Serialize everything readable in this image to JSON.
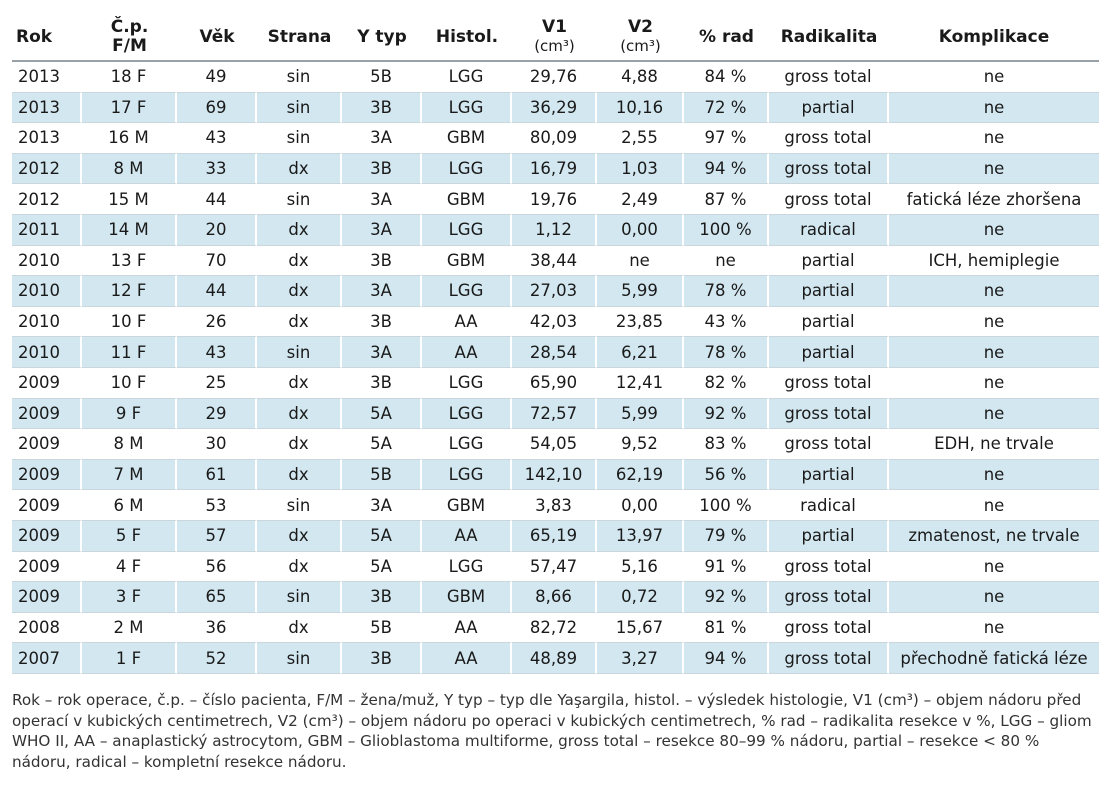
{
  "table": {
    "headers": [
      {
        "line1": "Rok",
        "line2": ""
      },
      {
        "line1": "Č.p.",
        "line2": "F/M"
      },
      {
        "line1": "Věk",
        "line2": ""
      },
      {
        "line1": "Strana",
        "line2": ""
      },
      {
        "line1": "Y typ",
        "line2": ""
      },
      {
        "line1": "Histol.",
        "line2": ""
      },
      {
        "line1": "V1",
        "line2": "(cm³)"
      },
      {
        "line1": "V2",
        "line2": "(cm³)"
      },
      {
        "line1": "% rad",
        "line2": ""
      },
      {
        "line1": "Radikalita",
        "line2": ""
      },
      {
        "line1": "Komplikace",
        "line2": ""
      }
    ],
    "rows": [
      [
        "2013",
        "18 F",
        "49",
        "sin",
        "5B",
        "LGG",
        "29,76",
        "4,88",
        "84 %",
        "gross total",
        "ne"
      ],
      [
        "2013",
        "17 F",
        "69",
        "sin",
        "3B",
        "LGG",
        "36,29",
        "10,16",
        "72 %",
        "partial",
        "ne"
      ],
      [
        "2013",
        "16 M",
        "43",
        "sin",
        "3A",
        "GBM",
        "80,09",
        "2,55",
        "97 %",
        "gross total",
        "ne"
      ],
      [
        "2012",
        "8 M",
        "33",
        "dx",
        "3B",
        "LGG",
        "16,79",
        "1,03",
        "94 %",
        "gross total",
        "ne"
      ],
      [
        "2012",
        "15 M",
        "44",
        "sin",
        "3A",
        "GBM",
        "19,76",
        "2,49",
        "87 %",
        "gross total",
        "fatická léze zhoršena"
      ],
      [
        "2011",
        "14 M",
        "20",
        "dx",
        "3A",
        "LGG",
        "1,12",
        "0,00",
        "100 %",
        "radical",
        "ne"
      ],
      [
        "2010",
        "13 F",
        "70",
        "dx",
        "3B",
        "GBM",
        "38,44",
        "ne",
        "ne",
        "partial",
        "ICH, hemiplegie"
      ],
      [
        "2010",
        "12 F",
        "44",
        "dx",
        "3A",
        "LGG",
        "27,03",
        "5,99",
        "78 %",
        "partial",
        "ne"
      ],
      [
        "2010",
        "10 F",
        "26",
        "dx",
        "3B",
        "AA",
        "42,03",
        "23,85",
        "43 %",
        "partial",
        "ne"
      ],
      [
        "2010",
        "11 F",
        "43",
        "sin",
        "3A",
        "AA",
        "28,54",
        "6,21",
        "78 %",
        "partial",
        "ne"
      ],
      [
        "2009",
        "10 F",
        "25",
        "dx",
        "3B",
        "LGG",
        "65,90",
        "12,41",
        "82 %",
        "gross total",
        "ne"
      ],
      [
        "2009",
        "9 F",
        "29",
        "dx",
        "5A",
        "LGG",
        "72,57",
        "5,99",
        "92 %",
        "gross total",
        "ne"
      ],
      [
        "2009",
        "8 M",
        "30",
        "dx",
        "5A",
        "LGG",
        "54,05",
        "9,52",
        "83 %",
        "gross total",
        "EDH, ne trvale"
      ],
      [
        "2009",
        "7 M",
        "61",
        "dx",
        "5B",
        "LGG",
        "142,10",
        "62,19",
        "56 %",
        "partial",
        "ne"
      ],
      [
        "2009",
        "6 M",
        "53",
        "sin",
        "3A",
        "GBM",
        "3,83",
        "0,00",
        "100 %",
        "radical",
        "ne"
      ],
      [
        "2009",
        "5 F",
        "57",
        "dx",
        "5A",
        "AA",
        "65,19",
        "13,97",
        "79 %",
        "partial",
        "zmatenost, ne trvale"
      ],
      [
        "2009",
        "4 F",
        "56",
        "dx",
        "5A",
        "LGG",
        "57,47",
        "5,16",
        "91 %",
        "gross total",
        "ne"
      ],
      [
        "2009",
        "3 F",
        "65",
        "sin",
        "3B",
        "GBM",
        "8,66",
        "0,72",
        "92 %",
        "gross total",
        "ne"
      ],
      [
        "2008",
        "2 M",
        "36",
        "dx",
        "5B",
        "AA",
        "82,72",
        "15,67",
        "81 %",
        "gross total",
        "ne"
      ],
      [
        "2007",
        "1 F",
        "52",
        "sin",
        "3B",
        "AA",
        "48,89",
        "3,27",
        "94 %",
        "gross total",
        "přechodně fatická léze"
      ]
    ]
  },
  "footnote": "Rok – rok operace, č.p. – číslo pacienta, F/M – žena/muž, Y typ – typ dle Yaşargila, histol. – výsledek histologie, V1 (cm³) – objem nádoru před operací v kubických centimetrech, V2 (cm³) – objem nádoru po operaci v kubických centimetrech, % rad – radikalita resekce v %, LGG – gliom WHO II, AA – anaplastický astrocytom, GBM – Glioblastoma multiforme, gross total – resekce 80–99 % nádoru, partial – resekce < 80 % nádoru, radical – kompletní resekce nádoru."
}
